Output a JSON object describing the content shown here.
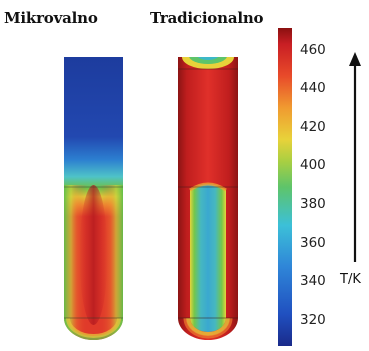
{
  "labels": {
    "microwave": "Mikrovalno",
    "traditional": "Tradicionalno"
  },
  "colorbar": {
    "ticks": [
      "460",
      "440",
      "420",
      "400",
      "380",
      "360",
      "340",
      "320"
    ],
    "unit": "T/K",
    "arrow_direction": "up",
    "colormap": "jet",
    "range": [
      310,
      470
    ]
  },
  "colors": {
    "deep_blue": "#1c3b9c",
    "blue": "#2a5fc4",
    "cyan": "#3cb8d8",
    "green": "#6cc24a",
    "yellow": "#e8d43a",
    "orange": "#ee7a2e",
    "red": "#de2a2a",
    "dark_red": "#8a1212"
  }
}
